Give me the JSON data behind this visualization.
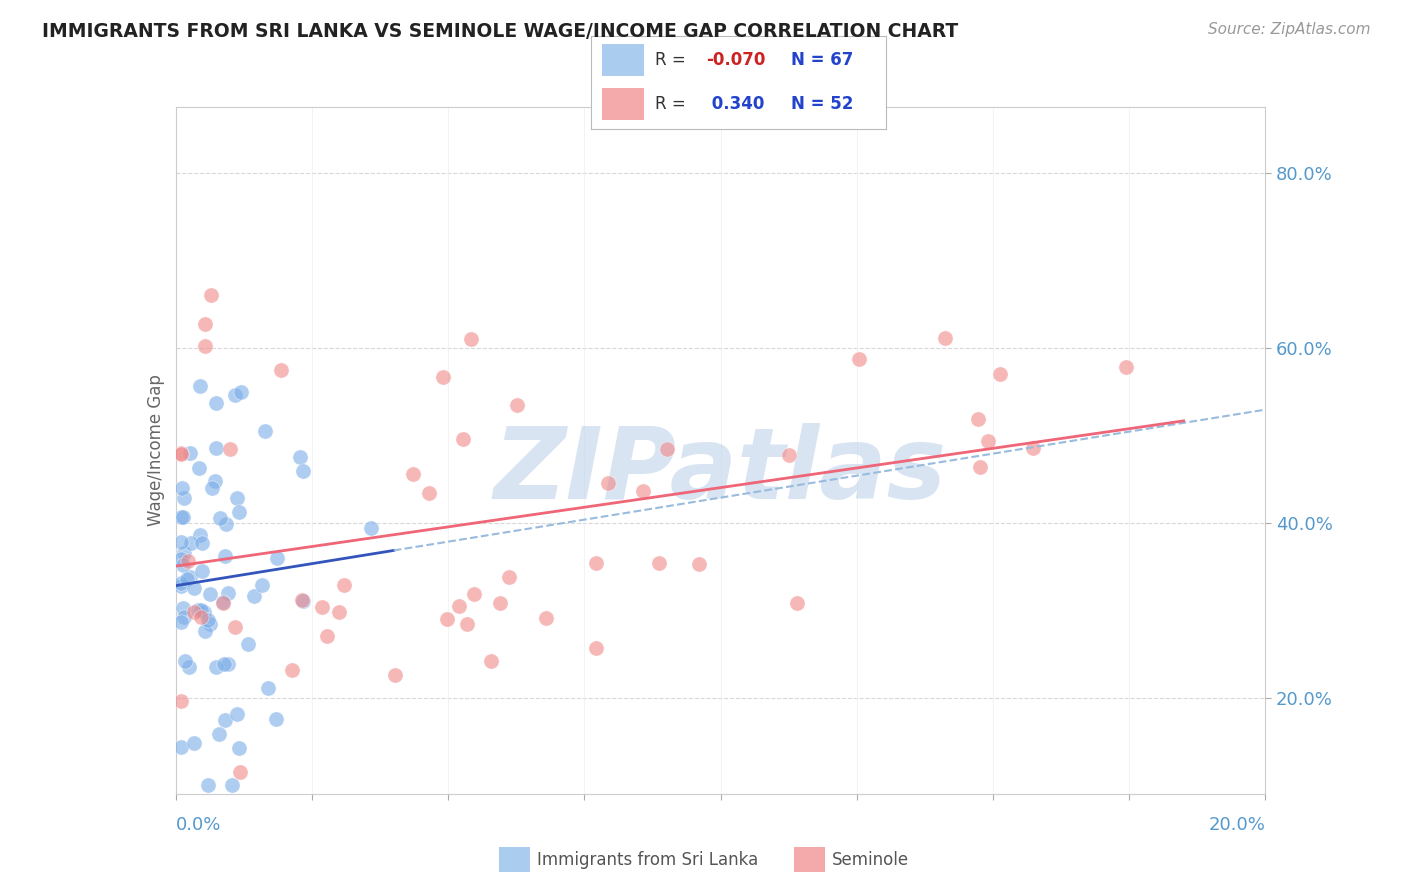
{
  "title": "IMMIGRANTS FROM SRI LANKA VS SEMINOLE WAGE/INCOME GAP CORRELATION CHART",
  "source": "Source: ZipAtlas.com",
  "ylabel": "Wage/Income Gap",
  "yaxis_ticks": [
    "20.0%",
    "40.0%",
    "60.0%",
    "80.0%"
  ],
  "yaxis_values": [
    0.2,
    0.4,
    0.6,
    0.8
  ],
  "xlim": [
    0.0,
    0.2
  ],
  "ylim": [
    0.09,
    0.875
  ],
  "legend_R1": "-0.070",
  "legend_N1": "67",
  "legend_R2": "0.340",
  "legend_N2": "52",
  "watermark": "ZIPatlas",
  "watermark_color": "#b8cfe8",
  "background_color": "#ffffff",
  "grid_color": "#d8d8d8",
  "title_color": "#222222",
  "source_color": "#999999",
  "sri_lanka_color": "#7aade8",
  "seminole_color": "#f08888",
  "blue_line_solid_color": "#3355bb",
  "blue_line_dashed_color": "#99bbdd",
  "pink_line_color": "#ee6677",
  "sri_lanka_legend_color": "#aaccee",
  "seminole_legend_color": "#f4aaaa",
  "legend_text_color": "#333333",
  "legend_value_color": "#2244cc",
  "legend_neg_color": "#cc2222",
  "x_label_color": "#5599cc",
  "y_label_color": "#5599cc"
}
